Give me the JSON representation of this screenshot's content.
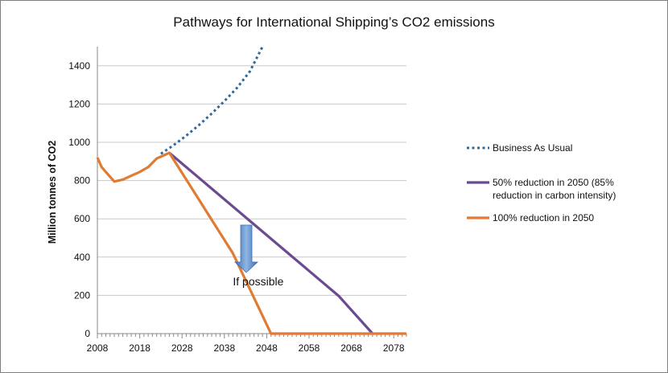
{
  "chart_data": {
    "type": "line",
    "title": "Pathways for International Shipping’s CO2 emissions",
    "xlabel": "",
    "ylabel": "Million tonnes of CO2",
    "xlim": [
      2008,
      2081
    ],
    "ylim": [
      0,
      1500
    ],
    "x_ticks": [
      2008,
      2018,
      2028,
      2038,
      2048,
      2058,
      2068,
      2078
    ],
    "y_ticks": [
      0,
      200,
      400,
      600,
      800,
      1000,
      1200,
      1400
    ],
    "grid": "horizontal",
    "legend_position": "right",
    "series": [
      {
        "name": "Business As Usual",
        "style": "dotted",
        "color": "#2e6a9c",
        "x": [
          2023,
          2026,
          2029,
          2032,
          2035,
          2038,
          2041,
          2044,
          2047
        ],
        "y": [
          940,
          985,
          1035,
          1090,
          1150,
          1215,
          1285,
          1370,
          1500
        ]
      },
      {
        "name": "50% reduction in 2050 (85% reduction in carbon intensity)",
        "style": "solid",
        "color": "#6c4a8f",
        "x": [
          2025,
          2035,
          2045,
          2055,
          2065,
          2073
        ],
        "y": [
          945,
          758,
          571,
          384,
          197,
          0
        ]
      },
      {
        "name": "100% reduction in 2050",
        "style": "solid",
        "color": "#e07b33",
        "x": [
          2008,
          2009,
          2010,
          2012,
          2014,
          2016,
          2018,
          2020,
          2022,
          2024,
          2025,
          2030,
          2040,
          2049,
          2081
        ],
        "y": [
          920,
          870,
          845,
          795,
          805,
          825,
          845,
          870,
          915,
          935,
          945,
          770,
          420,
          0,
          0
        ]
      }
    ],
    "annotations": [
      {
        "text": "If possible",
        "x": 2046,
        "y": 260
      }
    ],
    "arrow_color": "#4f86c6"
  }
}
